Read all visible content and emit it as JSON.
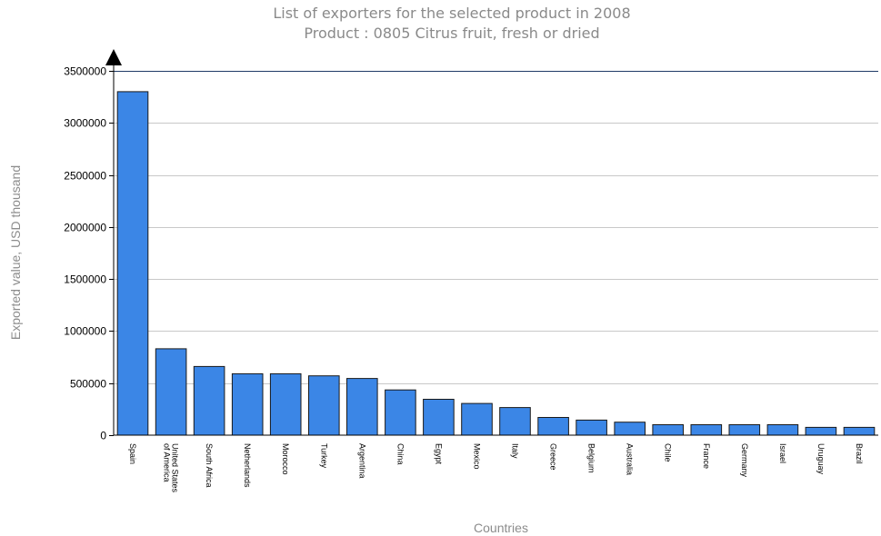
{
  "chart_data": {
    "type": "bar",
    "title": "List of exporters for the selected product in 2008",
    "subtitle": "Product : 0805 Citrus fruit, fresh or dried",
    "xlabel": "Countries",
    "ylabel": "Exported value, USD thousand",
    "ylim": [
      0,
      3500000
    ],
    "yticks": [
      "0",
      "500000",
      "1000000",
      "1500000",
      "2000000",
      "2500000",
      "3000000",
      "3500000"
    ],
    "ytick_values": [
      0,
      500000,
      1000000,
      1500000,
      2000000,
      2500000,
      3000000,
      3500000
    ],
    "grid": true,
    "bar_color": "#3b86e6",
    "categories": [
      [
        "Spain"
      ],
      [
        "United States",
        "of America"
      ],
      [
        "South Africa"
      ],
      [
        "Netherlands"
      ],
      [
        "Morocco"
      ],
      [
        "Turkey"
      ],
      [
        "Argentina"
      ],
      [
        "China"
      ],
      [
        "Egypt"
      ],
      [
        "Mexico"
      ],
      [
        "Italy"
      ],
      [
        "Greece"
      ],
      [
        "Belgium"
      ],
      [
        "Australia"
      ],
      [
        "Chile"
      ],
      [
        "France"
      ],
      [
        "Germany"
      ],
      [
        "Israel"
      ],
      [
        "Uruguay"
      ],
      [
        "Brazil"
      ]
    ],
    "values": [
      3300000,
      830000,
      660000,
      590000,
      590000,
      570000,
      545000,
      435000,
      345000,
      305000,
      265000,
      170000,
      145000,
      125000,
      100000,
      100000,
      100000,
      100000,
      75000,
      75000
    ]
  }
}
